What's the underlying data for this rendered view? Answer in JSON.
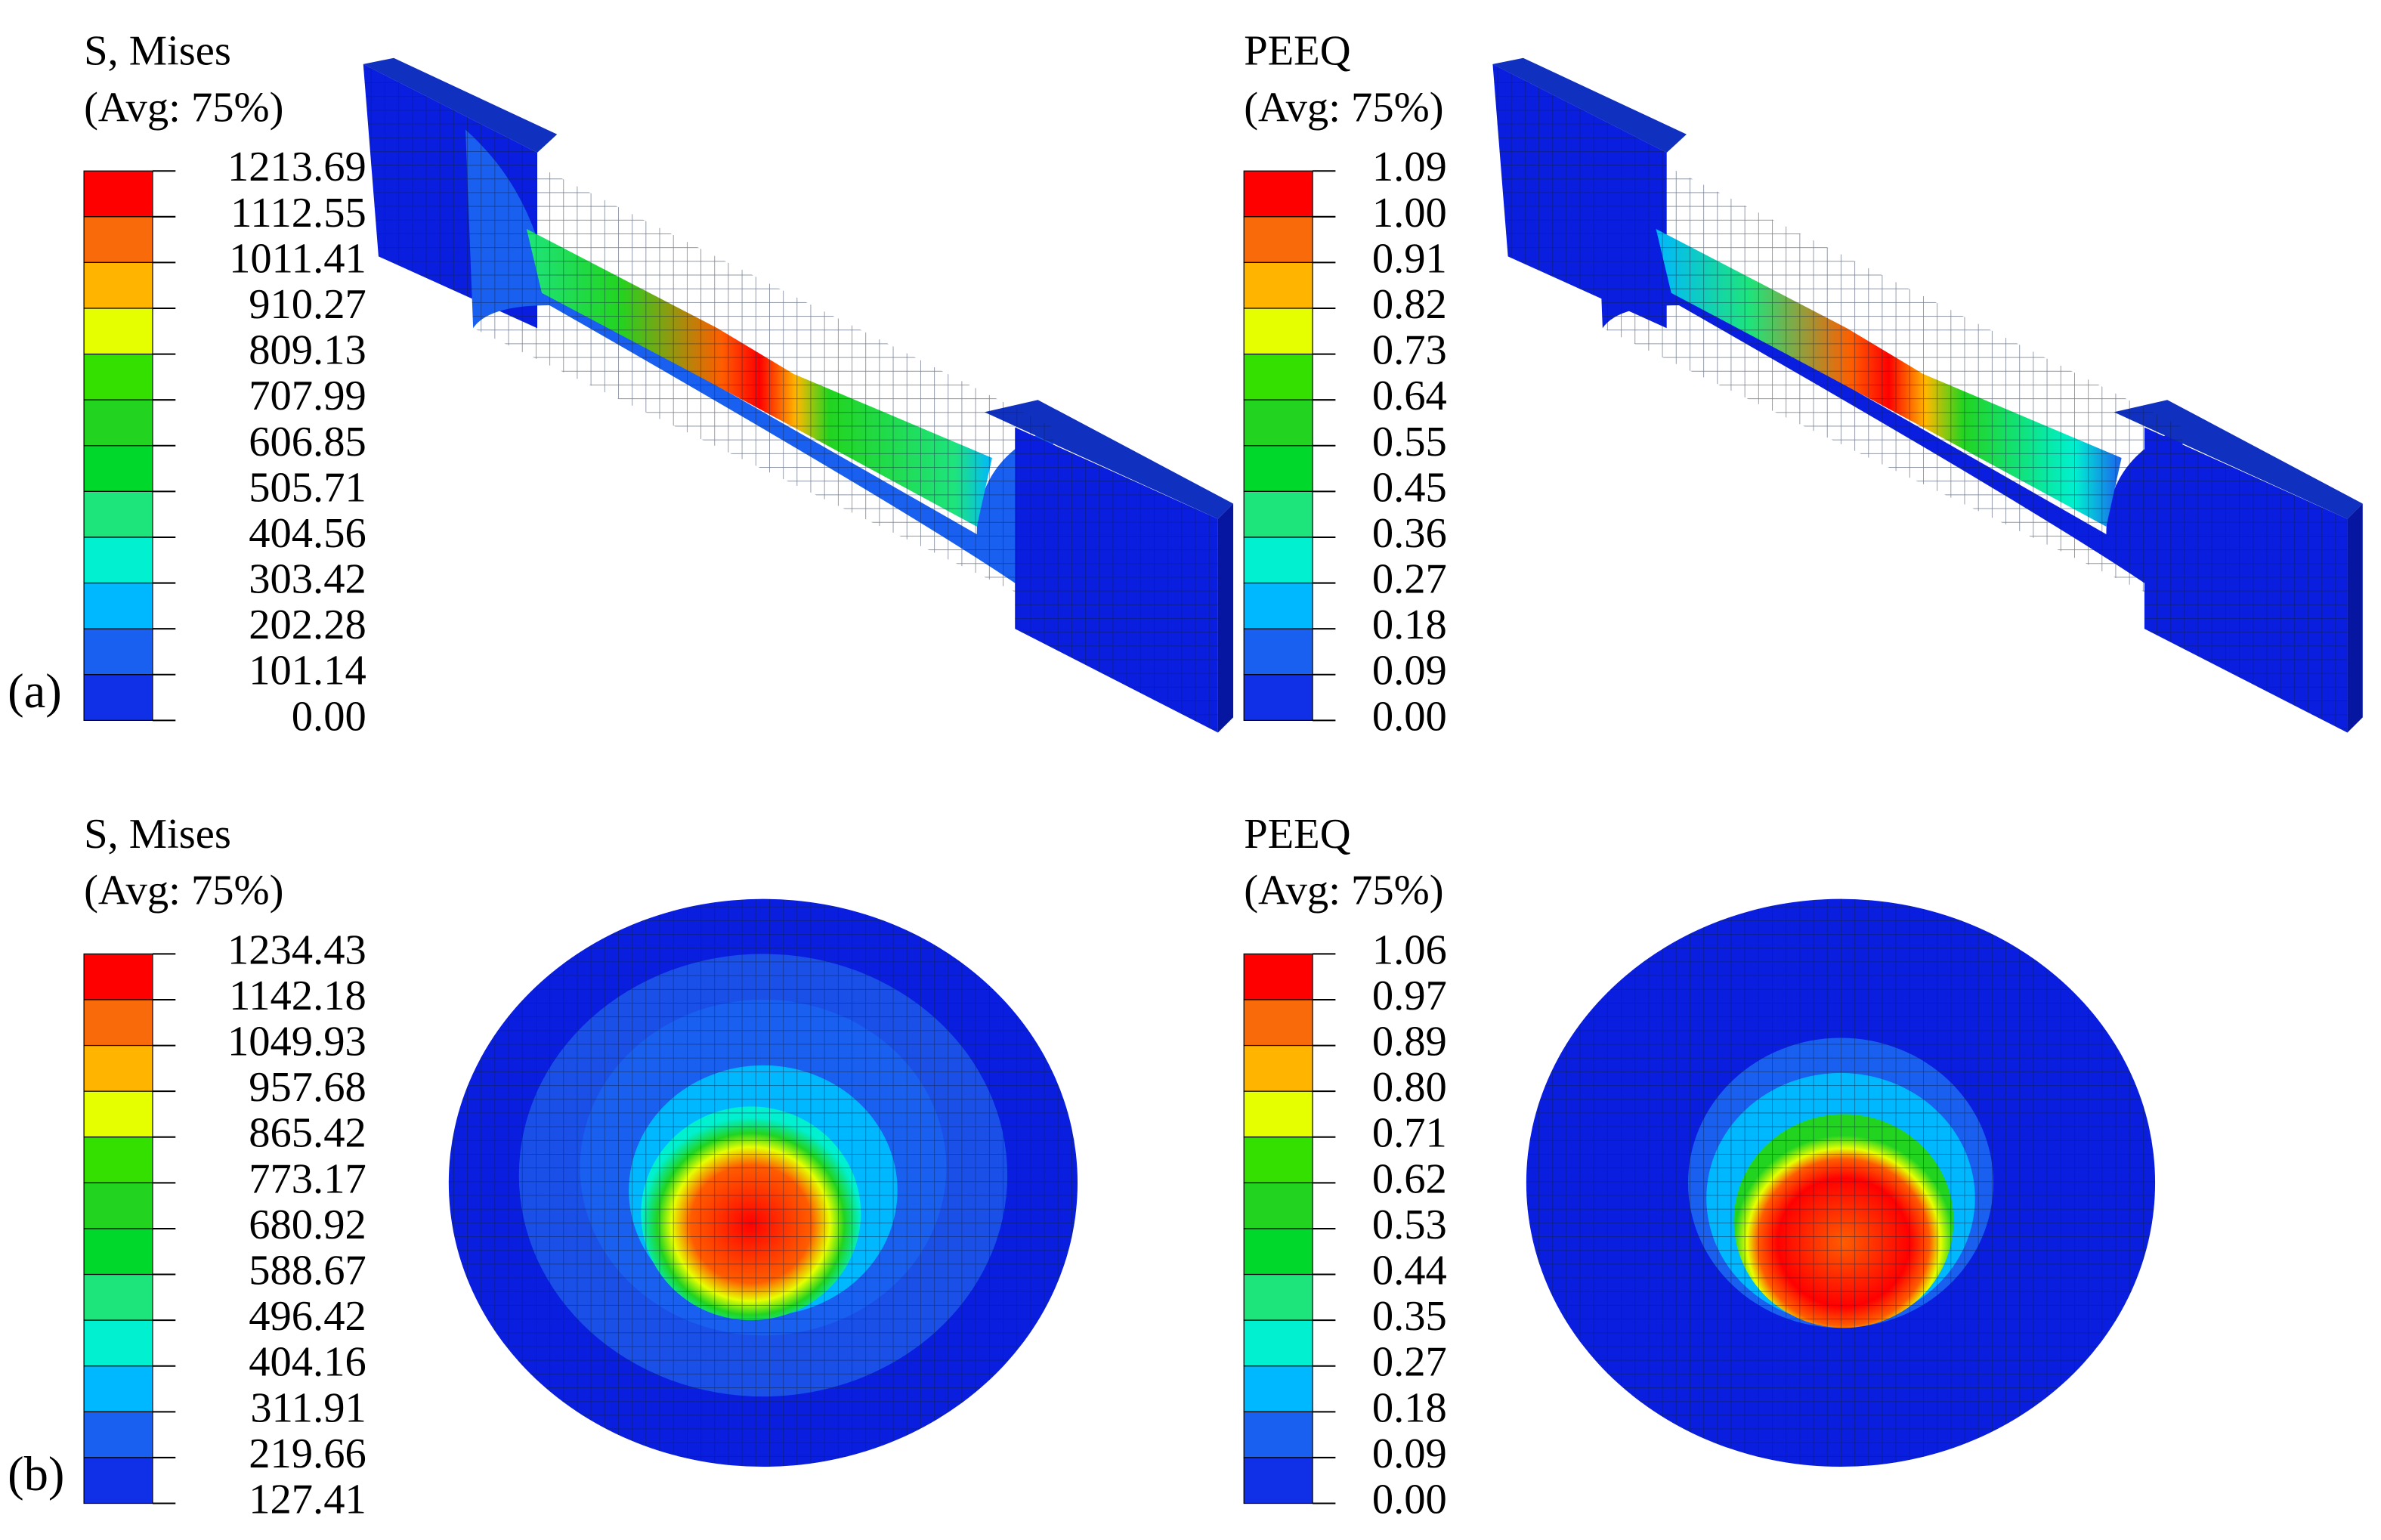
{
  "figure": {
    "rows": [
      {
        "label": "(a)",
        "plots": [
          {
            "title": "S, Mises",
            "subtitle": "(Avg: 75%)",
            "levels": [
              "1213.69",
              "1112.55",
              "1011.41",
              "910.27",
              "809.13",
              "707.99",
              "606.85",
              "505.71",
              "404.56",
              "303.42",
              "202.28",
              "101.14",
              "0.00"
            ]
          },
          {
            "title": "PEEQ",
            "subtitle": "(Avg: 75%)",
            "levels": [
              "1.09",
              "1.00",
              "0.91",
              "0.82",
              "0.73",
              "0.64",
              "0.55",
              "0.45",
              "0.36",
              "0.27",
              "0.18",
              "0.09",
              "0.00"
            ]
          }
        ]
      },
      {
        "label": "(b)",
        "plots": [
          {
            "title": "S, Mises",
            "subtitle": "(Avg: 75%)",
            "levels": [
              "1234.43",
              "1142.18",
              "1049.93",
              "957.68",
              "865.42",
              "773.17",
              "680.92",
              "588.67",
              "496.42",
              "404.16",
              "311.91",
              "219.66",
              "127.41"
            ]
          },
          {
            "title": "PEEQ",
            "subtitle": "(Avg: 75%)",
            "levels": [
              "1.06",
              "0.97",
              "0.89",
              "0.80",
              "0.71",
              "0.62",
              "0.53",
              "0.44",
              "0.35",
              "0.27",
              "0.18",
              "0.09",
              "0.00"
            ]
          }
        ]
      }
    ]
  }
}
